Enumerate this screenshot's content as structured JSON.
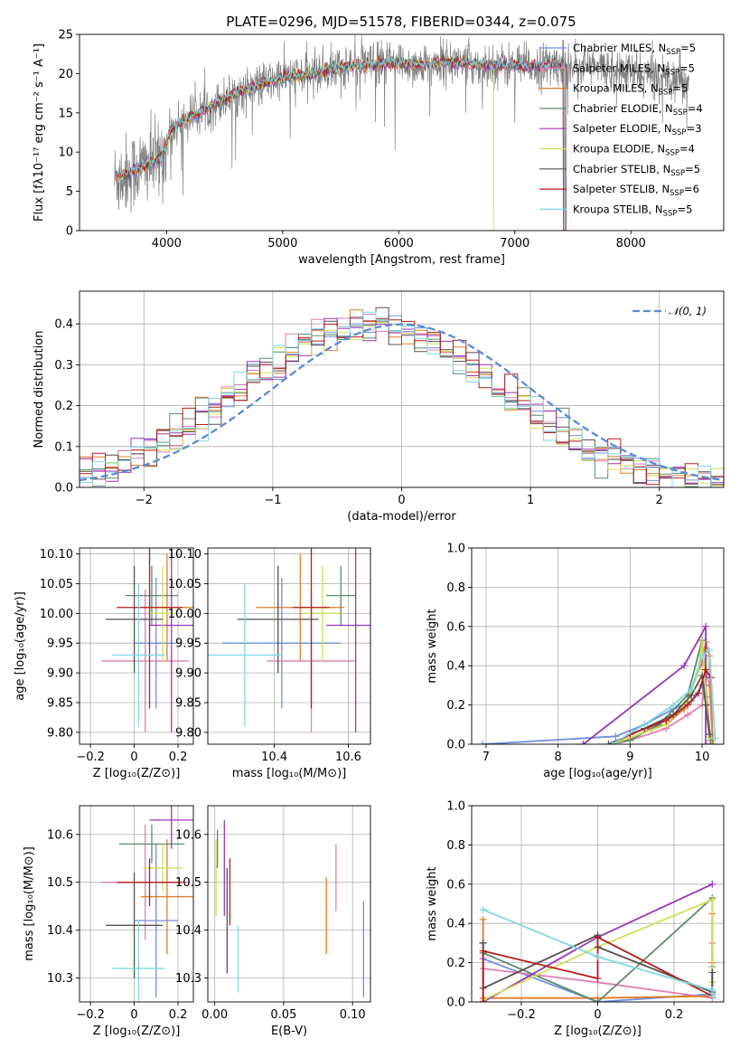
{
  "chart_data": [
    {
      "id": "spectrum",
      "type": "line",
      "title": "PLATE=0296, MJD=51578, FIBERID=0344, z=0.075",
      "xlabel": "wavelength [Angstrom, rest frame]",
      "ylabel": "Flux [fλ10⁻¹⁷ erg cm⁻² s⁻¹ A⁻¹]",
      "xlim": [
        3250,
        8800
      ],
      "ylim": [
        0,
        25
      ],
      "xticks": [
        4000,
        5000,
        6000,
        7000,
        8000
      ],
      "yticks": [
        0,
        5,
        10,
        15,
        20,
        25
      ],
      "grid": false,
      "legend_position": "upper-right",
      "legend": [
        {
          "main": "Chabrier MILES, N",
          "sub": "SSP",
          "tail": "=5",
          "color": "#6f8fdf"
        },
        {
          "main": "Salpeter MILES, N",
          "sub": "SSP",
          "tail": "=5",
          "color": "#e07fb0"
        },
        {
          "main": "Kroupa MILES, N",
          "sub": "SSP",
          "tail": "=5",
          "color": "#e07c2a"
        },
        {
          "main": "Chabrier ELODIE, N",
          "sub": "SSP",
          "tail": "=4",
          "color": "#5e8a6e"
        },
        {
          "main": "Salpeter ELODIE, N",
          "sub": "SSP",
          "tail": "=3",
          "color": "#9b35b8"
        },
        {
          "main": "Kroupa ELODIE, N",
          "sub": "SSP",
          "tail": "=4",
          "color": "#cfe05a"
        },
        {
          "main": "Chabrier STELIB, N",
          "sub": "SSP",
          "tail": "=5",
          "color": "#5a4f4f"
        },
        {
          "main": "Salpeter STELIB, N",
          "sub": "SSP",
          "tail": "=6",
          "color": "#b21e1e"
        },
        {
          "main": "Kroupa STELIB, N",
          "sub": "SSP",
          "tail": "=5",
          "color": "#7fd8e0"
        }
      ],
      "continuum": {
        "x": [
          3550,
          3700,
          3850,
          3950,
          4050,
          4200,
          4400,
          4600,
          4800,
          5000,
          5200,
          5400,
          5600,
          5800,
          6000,
          6200,
          6400,
          6600,
          6800,
          7000,
          7200,
          7400,
          7600,
          7800,
          8000,
          8200,
          8400,
          8500
        ],
        "y": [
          6.5,
          7.5,
          8.5,
          9.0,
          13.0,
          14.5,
          16.0,
          17.5,
          18.5,
          19.5,
          19.8,
          20.5,
          21.0,
          21.2,
          21.4,
          21.0,
          21.5,
          21.3,
          21.0,
          21.0,
          20.9,
          21.3,
          21.0,
          20.6,
          20.0,
          19.8,
          19.5,
          19.2
        ]
      }
    },
    {
      "id": "residuals",
      "type": "histogram",
      "xlabel": "(data-model)/error",
      "ylabel": "Normed distribution",
      "xlim": [
        -2.5,
        2.5
      ],
      "ylim": [
        0,
        0.48
      ],
      "xticks": [
        -2,
        -1,
        0,
        1,
        2
      ],
      "yticks": [
        0.0,
        0.1,
        0.2,
        0.3,
        0.4
      ],
      "grid": true,
      "legend_position": "upper-right",
      "legend_label": "𝒩(0, 1)",
      "reference_curve": "normal(0,1)"
    },
    {
      "id": "age-vs-Z",
      "type": "errorbar",
      "xlabel": "Z [log₁₀(Z/Z⊙)]",
      "ylabel": "age  [log₁₀(age/yr)]",
      "xlim": [
        -0.25,
        0.27
      ],
      "ylim": [
        9.78,
        10.11
      ],
      "xticks": [
        -0.2,
        0.0,
        0.2
      ],
      "ytick_values": [
        9.8,
        9.85,
        9.9,
        9.95,
        10.0,
        10.05,
        10.1
      ],
      "ytick_labels": [
        "9.80",
        "9.85",
        "9.90",
        "9.95",
        "10.00",
        "10.05",
        "10.10"
      ],
      "grid": true,
      "points": [
        {
          "x": 0.1,
          "xerr": 0.1,
          "y": 9.95,
          "yerr": 0.11,
          "color": "#6f8fdf"
        },
        {
          "x": 0.05,
          "xerr": 0.2,
          "y": 9.92,
          "yerr": 0.12,
          "color": "#e07fb0"
        },
        {
          "x": 0.15,
          "xerr": 0.12,
          "y": 10.01,
          "yerr": 0.09,
          "color": "#e07c2a"
        },
        {
          "x": 0.08,
          "xerr": 0.12,
          "y": 10.03,
          "yerr": 0.05,
          "color": "#5e8a6e"
        },
        {
          "x": 0.17,
          "xerr": 0.1,
          "y": 9.98,
          "yerr": 0.18,
          "color": "#9b35b8"
        },
        {
          "x": 0.13,
          "xerr": 0.06,
          "y": 10.0,
          "yerr": 0.08,
          "color": "#cfe05a"
        },
        {
          "x": 0.0,
          "xerr": 0.13,
          "y": 9.99,
          "yerr": 0.09,
          "color": "#5a4f4f"
        },
        {
          "x": 0.07,
          "xerr": 0.15,
          "y": 10.01,
          "yerr": 0.17,
          "color": "#b21e1e"
        },
        {
          "x": 0.02,
          "xerr": 0.12,
          "y": 9.93,
          "yerr": 0.12,
          "color": "#7fd8e0"
        }
      ]
    },
    {
      "id": "age-vs-mass",
      "type": "errorbar",
      "xlabel": "mass [log₁₀(M/M⊙)]",
      "xlim": [
        10.22,
        10.66
      ],
      "ylim": [
        9.78,
        10.11
      ],
      "xticks": [
        10.4,
        10.6
      ],
      "xtick_labels": [
        "10.4",
        "10.6"
      ],
      "ytick_values": [
        9.8,
        9.85,
        9.9,
        9.95,
        10.0,
        10.05,
        10.1
      ],
      "ytick_labels": [
        "9.80",
        "9.85",
        "9.90",
        "9.95",
        "10.00",
        "10.05",
        "10.10"
      ],
      "grid": true,
      "points": [
        {
          "x": 10.42,
          "xerr": 0.16,
          "y": 9.95,
          "yerr": 0.11,
          "color": "#6f8fdf"
        },
        {
          "x": 10.5,
          "xerr": 0.12,
          "y": 9.92,
          "yerr": 0.12,
          "color": "#e07fb0"
        },
        {
          "x": 10.47,
          "xerr": 0.12,
          "y": 10.01,
          "yerr": 0.09,
          "color": "#e07c2a"
        },
        {
          "x": 10.58,
          "xerr": 0.04,
          "y": 10.03,
          "yerr": 0.05,
          "color": "#5e8a6e"
        },
        {
          "x": 10.62,
          "xerr": 0.08,
          "y": 9.98,
          "yerr": 0.18,
          "color": "#9b35b8"
        },
        {
          "x": 10.53,
          "xerr": 0.05,
          "y": 10.0,
          "yerr": 0.08,
          "color": "#cfe05a"
        },
        {
          "x": 10.41,
          "xerr": 0.11,
          "y": 9.99,
          "yerr": 0.09,
          "color": "#5a4f4f"
        },
        {
          "x": 10.5,
          "xerr": 0.05,
          "y": 10.01,
          "yerr": 0.17,
          "color": "#b21e1e"
        },
        {
          "x": 10.32,
          "xerr": 0.1,
          "y": 9.93,
          "yerr": 0.12,
          "color": "#7fd8e0"
        }
      ]
    },
    {
      "id": "weight-vs-age",
      "type": "line",
      "xlabel": "age  [log₁₀(age/yr)]",
      "ylabel": "mass weight",
      "xlim": [
        6.8,
        10.3
      ],
      "ylim": [
        0,
        1.0
      ],
      "xticks": [
        7,
        8,
        9,
        10
      ],
      "yticks": [
        0.0,
        0.2,
        0.4,
        0.6,
        0.8,
        1.0
      ],
      "grid": true,
      "series": [
        {
          "color": "#6f8fdf",
          "x": [
            6.95,
            8.8,
            9.2,
            9.6,
            9.85,
            10.0,
            10.05,
            10.12
          ],
          "y": [
            0.0,
            0.04,
            0.1,
            0.18,
            0.22,
            0.3,
            0.24,
            0.02
          ]
        },
        {
          "color": "#e07fb0",
          "x": [
            8.75,
            9.0,
            9.5,
            9.8,
            10.0,
            10.05,
            10.1,
            10.15
          ],
          "y": [
            0.0,
            0.02,
            0.08,
            0.15,
            0.2,
            0.38,
            0.3,
            0.0
          ]
        },
        {
          "color": "#e07c2a",
          "x": [
            8.75,
            9.0,
            9.3,
            9.5,
            9.75,
            10.0,
            10.05,
            10.1,
            10.15
          ],
          "y": [
            0.0,
            0.03,
            0.08,
            0.1,
            0.18,
            0.42,
            0.52,
            0.45,
            0.0
          ]
        },
        {
          "color": "#5e8a6e",
          "x": [
            8.7,
            9.0,
            9.4,
            9.8,
            10.0,
            10.05,
            10.12
          ],
          "y": [
            0.0,
            0.02,
            0.1,
            0.25,
            0.53,
            0.3,
            0.0
          ]
        },
        {
          "color": "#9b35b8",
          "x": [
            8.35,
            9.75,
            10.05,
            10.05
          ],
          "y": [
            0.0,
            0.4,
            0.6,
            0.0
          ]
        },
        {
          "color": "#cfe05a",
          "x": [
            8.75,
            9.5,
            9.8,
            9.95,
            10.0,
            10.1
          ],
          "y": [
            0.0,
            0.1,
            0.22,
            0.38,
            0.52,
            0.03
          ]
        },
        {
          "color": "#5a4f4f",
          "x": [
            8.7,
            9.2,
            9.6,
            9.85,
            10.0,
            10.05,
            10.1
          ],
          "y": [
            0.0,
            0.08,
            0.15,
            0.25,
            0.35,
            0.2,
            0.05
          ]
        },
        {
          "color": "#b21e1e",
          "x": [
            8.75,
            9.0,
            9.5,
            9.8,
            9.95,
            10.05,
            10.12
          ],
          "y": [
            0.0,
            0.05,
            0.12,
            0.2,
            0.26,
            0.38,
            0.34
          ]
        },
        {
          "color": "#7fd8e0",
          "x": [
            8.75,
            9.2,
            9.6,
            9.85,
            10.0,
            10.1,
            10.18
          ],
          "y": [
            0.0,
            0.1,
            0.2,
            0.28,
            0.45,
            0.48,
            0.03
          ]
        }
      ]
    },
    {
      "id": "mass-vs-Z",
      "type": "errorbar",
      "xlabel": "Z [log₁₀(Z/Z⊙)]",
      "ylabel": "mass [log₁₀(M/M⊙)]",
      "xlim": [
        -0.25,
        0.27
      ],
      "ylim": [
        10.25,
        10.66
      ],
      "xticks": [
        -0.2,
        0.0,
        0.2
      ],
      "yticks": [
        10.3,
        10.4,
        10.5,
        10.6
      ],
      "grid": true,
      "points": [
        {
          "x": 0.1,
          "xerr": 0.1,
          "y": 10.42,
          "yerr": 0.16,
          "color": "#6f8fdf"
        },
        {
          "x": 0.05,
          "xerr": 0.2,
          "y": 10.5,
          "yerr": 0.12,
          "color": "#e07fb0"
        },
        {
          "x": 0.15,
          "xerr": 0.12,
          "y": 10.47,
          "yerr": 0.12,
          "color": "#e07c2a"
        },
        {
          "x": 0.08,
          "xerr": 0.15,
          "y": 10.58,
          "yerr": 0.04,
          "color": "#5e8a6e"
        },
        {
          "x": 0.17,
          "xerr": 0.1,
          "y": 10.63,
          "yerr": 0.06,
          "color": "#9b35b8"
        },
        {
          "x": 0.13,
          "xerr": 0.09,
          "y": 10.53,
          "yerr": 0.05,
          "color": "#cfe05a"
        },
        {
          "x": 0.0,
          "xerr": 0.13,
          "y": 10.41,
          "yerr": 0.11,
          "color": "#5a4f4f"
        },
        {
          "x": 0.07,
          "xerr": 0.15,
          "y": 10.5,
          "yerr": 0.05,
          "color": "#b21e1e"
        },
        {
          "x": 0.02,
          "xerr": 0.12,
          "y": 10.32,
          "yerr": 0.1,
          "color": "#7fd8e0"
        }
      ]
    },
    {
      "id": "mass-vs-ebv",
      "type": "errorbar",
      "xlabel": "E(B-V)",
      "xlim": [
        -0.005,
        0.113
      ],
      "ylim": [
        10.25,
        10.66
      ],
      "xticks": [
        0.0,
        0.05,
        0.1
      ],
      "xtick_labels": [
        "0.00",
        "0.05",
        "0.10"
      ],
      "yticks": [
        10.3,
        10.4,
        10.5,
        10.6
      ],
      "grid": true,
      "points": [
        {
          "x": 0.108,
          "xerr": 0,
          "y": 10.36,
          "yerr": 0.1,
          "color": "#6f8fdf"
        },
        {
          "x": 0.088,
          "xerr": 0,
          "y": 10.51,
          "yerr": 0.07,
          "color": "#e07fb0"
        },
        {
          "x": 0.081,
          "xerr": 0,
          "y": 10.43,
          "yerr": 0.08,
          "color": "#e07c2a"
        },
        {
          "x": 0.002,
          "xerr": 0,
          "y": 10.57,
          "yerr": 0.04,
          "color": "#5e8a6e"
        },
        {
          "x": 0.007,
          "xerr": 0,
          "y": 10.53,
          "yerr": 0.1,
          "color": "#9b35b8"
        },
        {
          "x": 0.001,
          "xerr": 0,
          "y": 10.51,
          "yerr": 0.08,
          "color": "#cfe05a"
        },
        {
          "x": 0.009,
          "xerr": 0,
          "y": 10.42,
          "yerr": 0.11,
          "color": "#5a4f4f"
        },
        {
          "x": 0.011,
          "xerr": 0,
          "y": 10.48,
          "yerr": 0.07,
          "color": "#b21e1e"
        },
        {
          "x": 0.017,
          "xerr": 0,
          "y": 10.34,
          "yerr": 0.07,
          "color": "#7fd8e0"
        }
      ]
    },
    {
      "id": "weight-vs-Z",
      "type": "line",
      "xlabel": "Z [log₁₀(Z/Z⊙)]",
      "ylabel": "mass weight",
      "xlim": [
        -0.33,
        0.33
      ],
      "ylim": [
        0,
        1.0
      ],
      "xticks": [
        -0.2,
        0.0,
        0.2
      ],
      "yticks": [
        0.0,
        0.2,
        0.4,
        0.6,
        0.8,
        1.0
      ],
      "grid": true,
      "series": [
        {
          "color": "#6f8fdf",
          "x": [
            -0.3,
            -0.3,
            0.0,
            0.3,
            0.3
          ],
          "y": [
            0.3,
            0.22,
            0.0,
            0.04,
            0.18
          ]
        },
        {
          "color": "#e07fb0",
          "x": [
            -0.3,
            -0.3,
            0.0,
            0.3,
            0.3
          ],
          "y": [
            0.0,
            0.17,
            0.1,
            0.02,
            0.3
          ]
        },
        {
          "color": "#e07c2a",
          "x": [
            -0.3,
            -0.3,
            0.0,
            0.3,
            0.3,
            0.3
          ],
          "y": [
            0.42,
            0.02,
            0.02,
            0.03,
            0.45,
            0.2
          ]
        },
        {
          "color": "#5e8a6e",
          "x": [
            -0.3,
            -0.3,
            0.0,
            0.3,
            0.3
          ],
          "y": [
            0.3,
            0.25,
            0.0,
            0.53,
            0.1
          ]
        },
        {
          "color": "#9b35b8",
          "x": [
            -0.3,
            -0.3,
            0.0,
            0.3
          ],
          "y": [
            0.0,
            0.0,
            0.33,
            0.6
          ]
        },
        {
          "color": "#cfe05a",
          "x": [
            -0.3,
            -0.3,
            0.0,
            0.3,
            0.3
          ],
          "y": [
            0.0,
            0.01,
            0.28,
            0.52,
            0.1
          ]
        },
        {
          "color": "#5a4f4f",
          "x": [
            -0.3,
            -0.3,
            0.0,
            0.0,
            0.3,
            0.3
          ],
          "y": [
            0.3,
            0.07,
            0.34,
            0.28,
            0.05,
            0.15
          ]
        },
        {
          "color": "#b21e1e",
          "x": [
            -0.3,
            -0.3,
            0.0,
            0.0,
            0.3
          ],
          "y": [
            0.0,
            0.26,
            0.12,
            0.33,
            0.03
          ]
        },
        {
          "color": "#7fd8e0",
          "x": [
            -0.3,
            0.0,
            0.3,
            0.3
          ],
          "y": [
            0.47,
            0.23,
            0.06,
            0.03
          ]
        }
      ]
    }
  ]
}
